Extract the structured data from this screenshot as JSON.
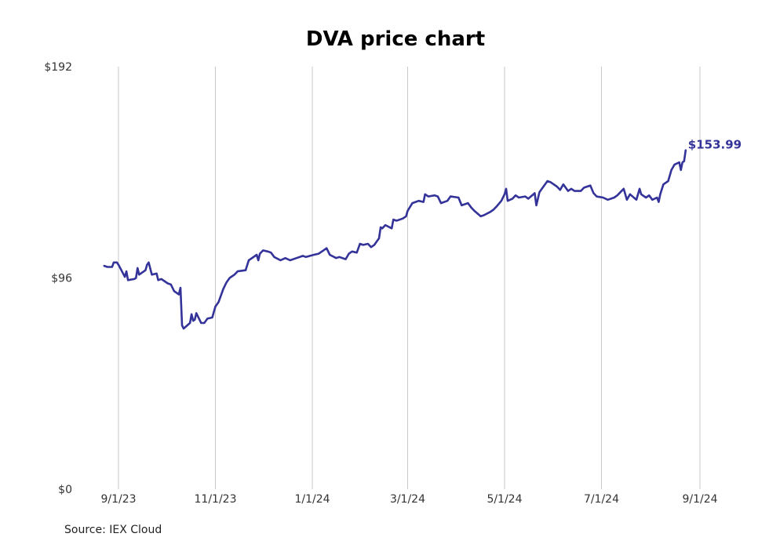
{
  "chart_data": {
    "type": "line",
    "title": "DVA price chart",
    "xlabel": "",
    "ylabel": "",
    "ylim": [
      0,
      192
    ],
    "yticks": [
      "$0",
      "$96",
      "$192"
    ],
    "ytick_values": [
      0,
      96,
      192
    ],
    "xticks": [
      "9/1/23",
      "11/1/23",
      "1/1/24",
      "3/1/24",
      "5/1/24",
      "7/1/24",
      "9/1/24"
    ],
    "xtick_dates": [
      "2023-09-01",
      "2023-11-01",
      "2024-01-01",
      "2024-03-01",
      "2024-05-01",
      "2024-07-01",
      "2024-09-01"
    ],
    "grid": "vertical",
    "series": [
      {
        "color": "#343399",
        "points": [
          [
            "2023-08-23",
            101.5
          ],
          [
            "2023-08-25",
            101.0
          ],
          [
            "2023-08-28",
            101.0
          ],
          [
            "2023-08-29",
            103.0
          ],
          [
            "2023-08-31",
            103.0
          ],
          [
            "2023-09-01",
            102.0
          ],
          [
            "2023-09-05",
            96.5
          ],
          [
            "2023-09-06",
            99.0
          ],
          [
            "2023-09-07",
            95.0
          ],
          [
            "2023-09-11",
            95.5
          ],
          [
            "2023-09-12",
            96.0
          ],
          [
            "2023-09-13",
            100.5
          ],
          [
            "2023-09-14",
            97.5
          ],
          [
            "2023-09-18",
            99.5
          ],
          [
            "2023-09-19",
            102.0
          ],
          [
            "2023-09-20",
            103.0
          ],
          [
            "2023-09-22",
            97.5
          ],
          [
            "2023-09-25",
            98.0
          ],
          [
            "2023-09-26",
            95.0
          ],
          [
            "2023-09-28",
            95.5
          ],
          [
            "2023-10-02",
            93.5
          ],
          [
            "2023-10-04",
            93.0
          ],
          [
            "2023-10-06",
            90.0
          ],
          [
            "2023-10-09",
            88.5
          ],
          [
            "2023-10-10",
            91.5
          ],
          [
            "2023-10-11",
            74.5
          ],
          [
            "2023-10-12",
            73.0
          ],
          [
            "2023-10-16",
            75.5
          ],
          [
            "2023-10-17",
            79.5
          ],
          [
            "2023-10-18",
            76.5
          ],
          [
            "2023-10-19",
            77.0
          ],
          [
            "2023-10-20",
            80.0
          ],
          [
            "2023-10-23",
            75.5
          ],
          [
            "2023-10-25",
            75.5
          ],
          [
            "2023-10-27",
            77.5
          ],
          [
            "2023-10-30",
            78.0
          ],
          [
            "2023-11-01",
            83.0
          ],
          [
            "2023-11-03",
            85.0
          ],
          [
            "2023-11-06",
            91.0
          ],
          [
            "2023-11-08",
            94.0
          ],
          [
            "2023-11-10",
            96.0
          ],
          [
            "2023-11-13",
            97.5
          ],
          [
            "2023-11-15",
            99.0
          ],
          [
            "2023-11-20",
            99.5
          ],
          [
            "2023-11-22",
            104.0
          ],
          [
            "2023-11-24",
            105.0
          ],
          [
            "2023-11-27",
            106.5
          ],
          [
            "2023-11-28",
            104.0
          ],
          [
            "2023-11-29",
            107.0
          ],
          [
            "2023-12-01",
            108.5
          ],
          [
            "2023-12-04",
            108.0
          ],
          [
            "2023-12-06",
            107.5
          ],
          [
            "2023-12-08",
            105.5
          ],
          [
            "2023-12-12",
            104.0
          ],
          [
            "2023-12-15",
            105.0
          ],
          [
            "2023-12-18",
            104.0
          ],
          [
            "2023-12-22",
            105.0
          ],
          [
            "2023-12-26",
            106.0
          ],
          [
            "2023-12-28",
            105.5
          ],
          [
            "2024-01-02",
            106.5
          ],
          [
            "2024-01-05",
            107.0
          ],
          [
            "2024-01-08",
            108.5
          ],
          [
            "2024-01-10",
            109.5
          ],
          [
            "2024-01-12",
            106.5
          ],
          [
            "2024-01-16",
            105.0
          ],
          [
            "2024-01-18",
            105.5
          ],
          [
            "2024-01-22",
            104.5
          ],
          [
            "2024-01-24",
            107.0
          ],
          [
            "2024-01-26",
            108.0
          ],
          [
            "2024-01-29",
            107.5
          ],
          [
            "2024-01-31",
            111.5
          ],
          [
            "2024-02-02",
            111.0
          ],
          [
            "2024-02-05",
            111.5
          ],
          [
            "2024-02-07",
            110.0
          ],
          [
            "2024-02-09",
            111.0
          ],
          [
            "2024-02-12",
            114.0
          ],
          [
            "2024-02-13",
            119.0
          ],
          [
            "2024-02-14",
            118.5
          ],
          [
            "2024-02-16",
            120.0
          ],
          [
            "2024-02-20",
            118.5
          ],
          [
            "2024-02-21",
            122.5
          ],
          [
            "2024-02-23",
            122.0
          ],
          [
            "2024-02-27",
            123.0
          ],
          [
            "2024-02-29",
            124.0
          ],
          [
            "2024-03-01",
            126.5
          ],
          [
            "2024-03-04",
            130.0
          ],
          [
            "2024-03-06",
            130.5
          ],
          [
            "2024-03-08",
            131.0
          ],
          [
            "2024-03-11",
            130.5
          ],
          [
            "2024-03-12",
            134.0
          ],
          [
            "2024-03-14",
            133.0
          ],
          [
            "2024-03-18",
            133.5
          ],
          [
            "2024-03-20",
            133.0
          ],
          [
            "2024-03-22",
            130.0
          ],
          [
            "2024-03-26",
            131.0
          ],
          [
            "2024-03-28",
            133.0
          ],
          [
            "2024-04-02",
            132.5
          ],
          [
            "2024-04-04",
            129.0
          ],
          [
            "2024-04-08",
            130.0
          ],
          [
            "2024-04-10",
            128.0
          ],
          [
            "2024-04-12",
            126.5
          ],
          [
            "2024-04-16",
            124.0
          ],
          [
            "2024-04-18",
            124.5
          ],
          [
            "2024-04-22",
            126.0
          ],
          [
            "2024-04-24",
            127.0
          ],
          [
            "2024-04-26",
            128.5
          ],
          [
            "2024-04-29",
            131.0
          ],
          [
            "2024-05-01",
            134.0
          ],
          [
            "2024-05-02",
            136.5
          ],
          [
            "2024-05-03",
            131.0
          ],
          [
            "2024-05-06",
            132.0
          ],
          [
            "2024-05-08",
            133.5
          ],
          [
            "2024-05-10",
            132.5
          ],
          [
            "2024-05-14",
            133.0
          ],
          [
            "2024-05-16",
            132.0
          ],
          [
            "2024-05-20",
            134.5
          ],
          [
            "2024-05-21",
            129.0
          ],
          [
            "2024-05-23",
            135.0
          ],
          [
            "2024-05-24",
            136.0
          ],
          [
            "2024-05-28",
            140.0
          ],
          [
            "2024-05-30",
            139.5
          ],
          [
            "2024-06-03",
            137.5
          ],
          [
            "2024-06-05",
            136.0
          ],
          [
            "2024-06-07",
            138.5
          ],
          [
            "2024-06-10",
            135.5
          ],
          [
            "2024-06-12",
            136.5
          ],
          [
            "2024-06-14",
            135.5
          ],
          [
            "2024-06-18",
            135.5
          ],
          [
            "2024-06-20",
            137.0
          ],
          [
            "2024-06-24",
            138.0
          ],
          [
            "2024-06-26",
            134.5
          ],
          [
            "2024-06-28",
            133.0
          ],
          [
            "2024-07-02",
            132.5
          ],
          [
            "2024-07-05",
            131.5
          ],
          [
            "2024-07-09",
            132.5
          ],
          [
            "2024-07-11",
            133.5
          ],
          [
            "2024-07-15",
            136.5
          ],
          [
            "2024-07-17",
            131.5
          ],
          [
            "2024-07-19",
            134.0
          ],
          [
            "2024-07-23",
            131.5
          ],
          [
            "2024-07-25",
            136.5
          ],
          [
            "2024-07-26",
            134.0
          ],
          [
            "2024-07-29",
            132.5
          ],
          [
            "2024-07-31",
            133.5
          ],
          [
            "2024-08-02",
            131.5
          ],
          [
            "2024-08-05",
            132.5
          ],
          [
            "2024-08-06",
            130.5
          ],
          [
            "2024-08-07",
            134.0
          ],
          [
            "2024-08-09",
            138.5
          ],
          [
            "2024-08-12",
            140.0
          ],
          [
            "2024-08-14",
            145.0
          ],
          [
            "2024-08-16",
            147.5
          ],
          [
            "2024-08-19",
            148.5
          ],
          [
            "2024-08-20",
            145.0
          ],
          [
            "2024-08-21",
            148.5
          ],
          [
            "2024-08-22",
            149.0
          ],
          [
            "2024-08-23",
            153.99
          ]
        ]
      }
    ],
    "last_value_label": "$153.99"
  },
  "source": "Source: IEX Cloud"
}
